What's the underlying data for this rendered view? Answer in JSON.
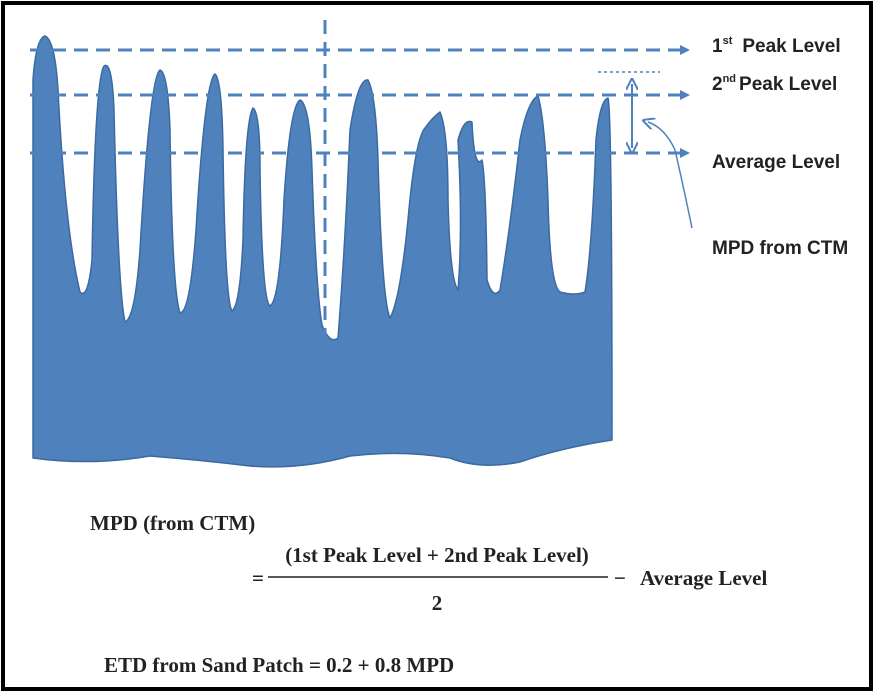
{
  "labels": {
    "first_peak": {
      "number": "1",
      "suffix": "st",
      "text": "Peak Level"
    },
    "second_peak": {
      "number": "2",
      "suffix": "nd",
      "text": "Peak Level"
    },
    "average": "Average Level",
    "mpd": "MPD from CTM"
  },
  "formula": {
    "lhs": "MPD (from CTM)",
    "equals": "=",
    "numerator": "(1st Peak Level + 2nd Peak Level)",
    "denominator": "2",
    "minus": "−",
    "result": "Average Level",
    "etd": "ETD from Sand Patch = 0.2 + 0.8 MPD"
  }
}
